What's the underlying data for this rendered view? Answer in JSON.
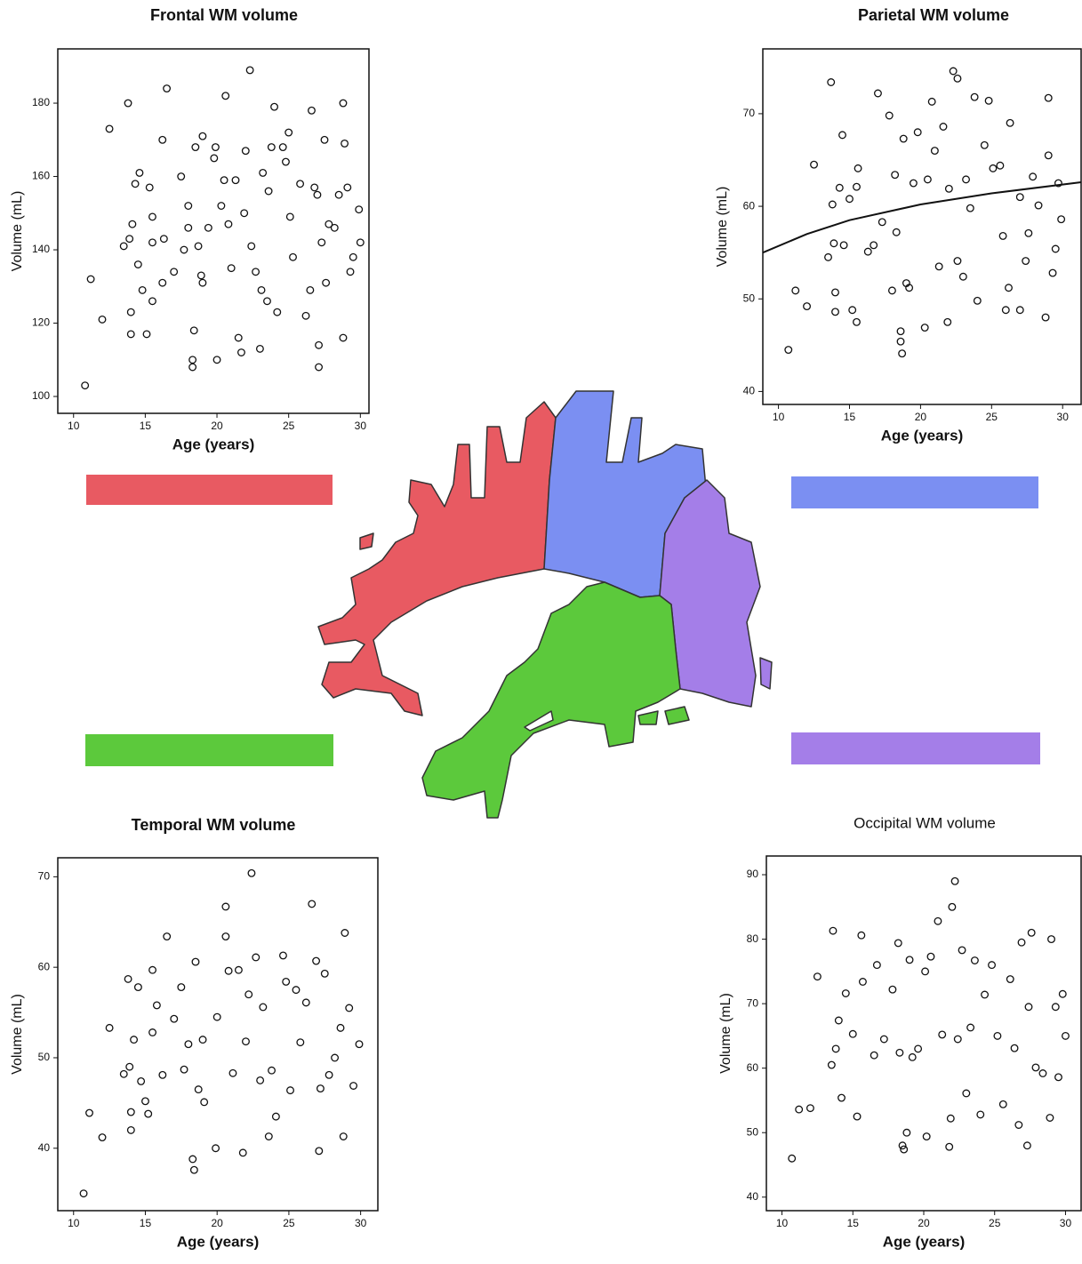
{
  "chart_data": [
    {
      "type": "scatter",
      "title": "Frontal WM volume",
      "x_label": "Age (years)",
      "y_label": "Volume (mL)",
      "xlim": [
        8.9,
        30.6
      ],
      "ylim": [
        95.4,
        194.8
      ],
      "xticks": [
        10,
        15,
        20,
        25,
        30
      ],
      "yticks": [
        100,
        120,
        140,
        160,
        180
      ],
      "series": [
        {
          "color": "#111111",
          "x": [
            10.8,
            11.2,
            12,
            12.5,
            13.5,
            13.8,
            13.9,
            14,
            14,
            14.1,
            14.3,
            14.6,
            14.5,
            14.8,
            15.1,
            15.3,
            15.5,
            15.5,
            15.5,
            16.2,
            16.5,
            16.2,
            16.3,
            17,
            17.5,
            17.7,
            18,
            18,
            18.3,
            18.3,
            18.4,
            18.5,
            18.7,
            19,
            18.9,
            19,
            19.4,
            20,
            19.8,
            19.9,
            20.3,
            20.6,
            20.5,
            20.8,
            21,
            21.3,
            21.5,
            21.7,
            21.9,
            22,
            22.3,
            22.4,
            22.7,
            23,
            23.1,
            23.2,
            23.5,
            23.6,
            23.8,
            24,
            24.2,
            24.6,
            24.8,
            25,
            25.1,
            25.3,
            25.8,
            26.2,
            26.5,
            26.6,
            26.8,
            27,
            27.1,
            27.1,
            27.3,
            27.5,
            27.6,
            27.8,
            28.2,
            28.5,
            28.8,
            28.8,
            28.9,
            29.1,
            29.3,
            29.5,
            29.9,
            30
          ],
          "y": [
            103,
            132,
            121,
            173,
            141,
            180,
            143,
            117,
            123,
            147,
            158,
            161,
            136,
            129,
            117,
            157,
            149,
            126,
            142,
            170,
            184,
            131,
            143,
            134,
            160,
            140,
            146,
            152,
            110,
            108,
            118,
            168,
            141,
            171,
            133,
            131,
            146,
            110,
            165,
            168,
            152,
            182,
            159,
            147,
            135,
            159,
            116,
            112,
            150,
            167,
            189,
            141,
            134,
            113,
            129,
            161,
            126,
            156,
            168,
            179,
            123,
            168,
            164,
            172,
            149,
            138,
            158,
            122,
            129,
            178,
            157,
            155,
            114,
            108,
            142,
            170,
            131,
            147,
            146,
            155,
            116,
            180,
            169,
            157,
            134,
            138,
            151,
            142
          ]
        }
      ]
    },
    {
      "type": "scatter",
      "title": "Parietal WM volume",
      "x_label": "Age (years)",
      "y_label": "Volume (mL)",
      "xlim": [
        8.9,
        31.3
      ],
      "ylim": [
        38.6,
        77.0
      ],
      "xticks": [
        10,
        15,
        20,
        25,
        30
      ],
      "yticks": [
        40,
        50,
        60,
        70
      ],
      "series": [
        {
          "color": "#111111",
          "x": [
            10.7,
            11.2,
            12,
            12.5,
            13.5,
            13.7,
            13.8,
            13.9,
            14,
            14,
            14.3,
            14.5,
            14.6,
            15,
            15.2,
            15.5,
            15.5,
            15.6,
            16.3,
            16.7,
            17,
            17.3,
            17.8,
            18,
            18.2,
            18.3,
            18.6,
            18.6,
            18.7,
            18.8,
            19,
            19.2,
            19.5,
            19.8,
            20.3,
            20.5,
            20.8,
            21,
            21.3,
            21.6,
            21.9,
            22,
            22.3,
            22.6,
            22.6,
            23,
            23.2,
            23.5,
            23.8,
            24,
            24.5,
            24.8,
            25.1,
            25.6,
            25.8,
            26,
            26.3,
            26.2,
            27,
            27,
            27.4,
            27.6,
            27.9,
            28.3,
            28.8,
            29,
            29,
            29.3,
            29.5,
            29.7,
            29.9
          ],
          "y": [
            44.5,
            50.9,
            49.2,
            64.5,
            54.5,
            73.4,
            60.2,
            56,
            48.6,
            50.7,
            62,
            67.7,
            55.8,
            60.8,
            48.8,
            47.5,
            62.1,
            64.1,
            55.1,
            55.8,
            72.2,
            58.3,
            69.8,
            50.9,
            63.4,
            57.2,
            46.5,
            45.4,
            44.1,
            67.3,
            51.7,
            51.2,
            62.5,
            68,
            46.9,
            62.9,
            71.3,
            66,
            53.5,
            68.6,
            47.5,
            61.9,
            74.6,
            73.8,
            54.1,
            52.4,
            62.9,
            59.8,
            71.8,
            49.8,
            66.6,
            71.4,
            64.1,
            64.4,
            56.8,
            48.8,
            69,
            51.2,
            61,
            48.8,
            54.1,
            57.1,
            63.2,
            60.1,
            48,
            71.7,
            65.5,
            52.8,
            55.4,
            62.5,
            58.6
          ]
        },
        {
          "color": "#111111",
          "style": "line",
          "x": [
            8.9,
            12,
            15,
            20,
            25,
            31.3
          ],
          "y": [
            55,
            57,
            58.5,
            60.2,
            61.4,
            62.6
          ]
        }
      ]
    },
    {
      "type": "scatter",
      "title": "Temporal WM volume",
      "x_label": "Age (years)",
      "y_label": "Volume (mL)",
      "xlim": [
        8.9,
        31.2
      ],
      "ylim": [
        33.1,
        72.1
      ],
      "xticks": [
        10,
        15,
        20,
        25,
        30
      ],
      "yticks": [
        40,
        50,
        60,
        70
      ],
      "series": [
        {
          "color": "#111111",
          "x": [
            10.7,
            11.1,
            12,
            12.5,
            13.5,
            13.8,
            13.9,
            14,
            14,
            14.2,
            14.5,
            14.7,
            15,
            15.2,
            15.5,
            15.5,
            15.8,
            16.2,
            16.5,
            17,
            17.5,
            17.7,
            18,
            18.3,
            18.4,
            18.5,
            18.7,
            19,
            19.1,
            19.9,
            20,
            20.6,
            20.6,
            20.8,
            21.1,
            21.5,
            21.8,
            22,
            22.2,
            22.4,
            22.7,
            23,
            23.2,
            23.6,
            23.8,
            24.1,
            24.6,
            24.8,
            25.1,
            25.5,
            25.8,
            26.2,
            26.6,
            26.9,
            27.1,
            27.2,
            27.5,
            27.8,
            28.2,
            28.6,
            28.8,
            28.9,
            29.2,
            29.5,
            29.9
          ],
          "y": [
            35,
            43.9,
            41.2,
            53.3,
            48.2,
            58.7,
            49,
            42,
            44,
            52,
            57.8,
            47.4,
            45.2,
            43.8,
            59.7,
            52.8,
            55.8,
            48.1,
            63.4,
            54.3,
            57.8,
            48.7,
            51.5,
            38.8,
            37.6,
            60.6,
            46.5,
            52,
            45.1,
            40,
            54.5,
            66.7,
            63.4,
            59.6,
            48.3,
            59.7,
            39.5,
            51.8,
            57,
            70.4,
            61.1,
            47.5,
            55.6,
            41.3,
            48.6,
            43.5,
            61.3,
            58.4,
            46.4,
            57.5,
            51.7,
            56.1,
            67,
            60.7,
            39.7,
            46.6,
            59.3,
            48.1,
            50,
            53.3,
            41.3,
            63.8,
            55.5,
            46.9,
            51.5
          ]
        }
      ]
    },
    {
      "type": "scatter",
      "title": "Occipital WM volume",
      "x_label": "Age (years)",
      "y_label": "Volume (mL)",
      "xlim": [
        8.9,
        31.1
      ],
      "ylim": [
        37.9,
        92.9
      ],
      "xticks": [
        10,
        15,
        20,
        25,
        30
      ],
      "yticks": [
        40,
        50,
        60,
        70,
        80,
        90
      ],
      "series": [
        {
          "color": "#111111",
          "x": [
            10.7,
            11.2,
            12,
            12.5,
            13.5,
            13.6,
            13.8,
            14,
            14.2,
            14.5,
            15,
            15.3,
            15.6,
            15.7,
            16.5,
            16.7,
            17.2,
            17.8,
            18.2,
            18.3,
            18.5,
            18.6,
            18.8,
            19,
            19.2,
            19.6,
            20.1,
            20.2,
            20.5,
            21,
            21.3,
            21.8,
            21.9,
            22,
            22.2,
            22.4,
            22.7,
            23,
            23.3,
            23.6,
            24,
            24.3,
            24.8,
            25.2,
            25.6,
            26.1,
            26.4,
            26.7,
            26.9,
            27.3,
            27.4,
            27.6,
            27.9,
            28.4,
            28.9,
            29,
            29.3,
            29.5,
            29.8,
            30
          ],
          "y": [
            46,
            53.6,
            53.8,
            74.2,
            60.5,
            81.3,
            63,
            67.4,
            55.4,
            71.6,
            65.3,
            52.5,
            80.6,
            73.4,
            62,
            76,
            64.5,
            72.2,
            79.4,
            62.4,
            48,
            47.4,
            50,
            76.8,
            61.7,
            63,
            75,
            49.4,
            77.3,
            82.8,
            65.2,
            47.8,
            52.2,
            85,
            89,
            64.5,
            78.3,
            56.1,
            66.3,
            76.7,
            52.8,
            71.4,
            76,
            65,
            54.4,
            73.8,
            63.1,
            51.2,
            79.5,
            48,
            69.5,
            81,
            60.1,
            59.2,
            52.3,
            80,
            69.5,
            58.6,
            71.5,
            65
          ]
        }
      ]
    }
  ]
}
